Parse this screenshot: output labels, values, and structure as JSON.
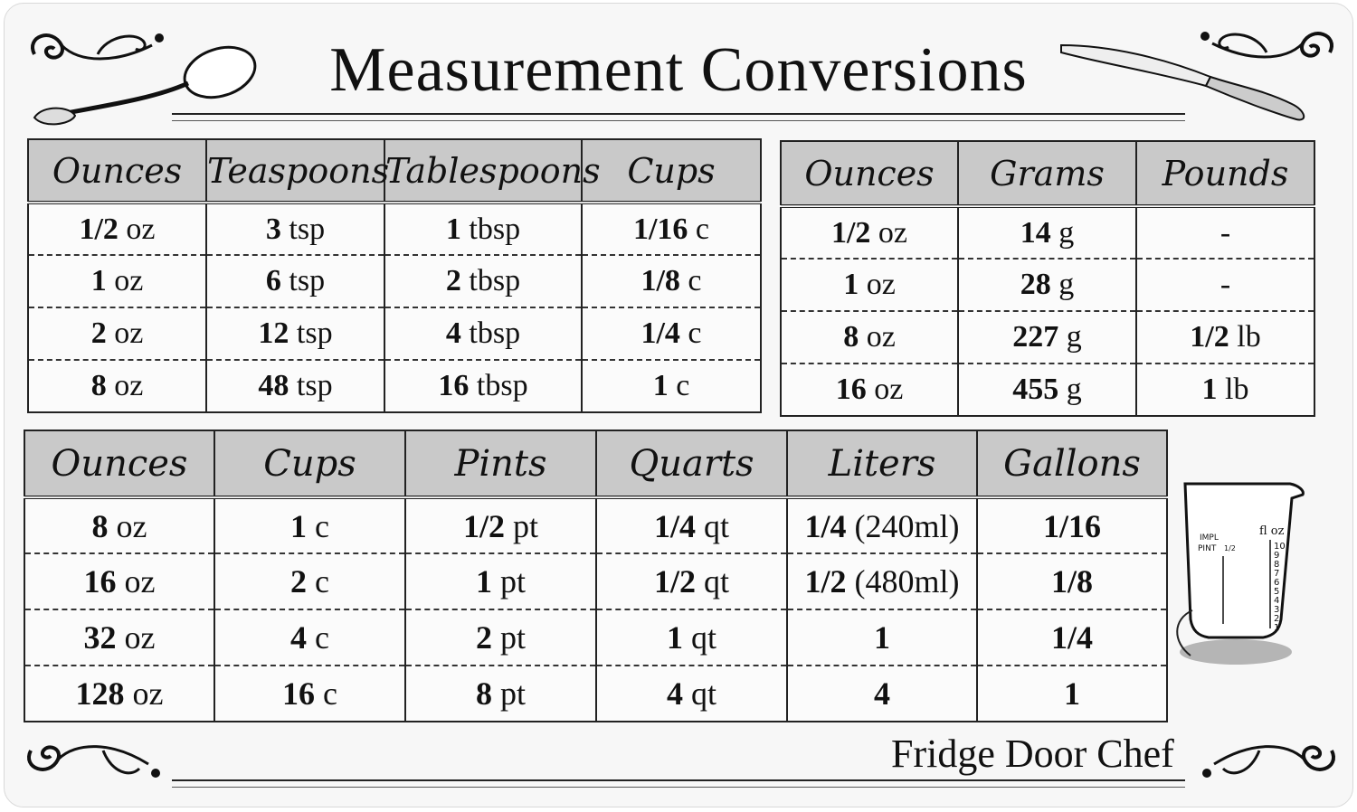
{
  "title": "Measurement Conversions",
  "brand": "Fridge Door Chef",
  "volume_table": {
    "headers": [
      "Ounces",
      "Teaspoons",
      "Tablespoons",
      "Cups"
    ],
    "rows": [
      [
        [
          "1/2",
          "oz"
        ],
        [
          "3",
          "tsp"
        ],
        [
          "1",
          "tbsp"
        ],
        [
          "1/16",
          "c"
        ]
      ],
      [
        [
          "1",
          "oz"
        ],
        [
          "6",
          "tsp"
        ],
        [
          "2",
          "tbsp"
        ],
        [
          "1/8",
          "c"
        ]
      ],
      [
        [
          "2",
          "oz"
        ],
        [
          "12",
          "tsp"
        ],
        [
          "4",
          "tbsp"
        ],
        [
          "1/4",
          "c"
        ]
      ],
      [
        [
          "8",
          "oz"
        ],
        [
          "48",
          "tsp"
        ],
        [
          "16",
          "tbsp"
        ],
        [
          "1",
          "c"
        ]
      ]
    ]
  },
  "weight_table": {
    "headers": [
      "Ounces",
      "Grams",
      "Pounds"
    ],
    "rows": [
      [
        [
          "1/2",
          "oz"
        ],
        [
          "14",
          "g"
        ],
        [
          "-",
          ""
        ]
      ],
      [
        [
          "1",
          "oz"
        ],
        [
          "28",
          "g"
        ],
        [
          "-",
          ""
        ]
      ],
      [
        [
          "8",
          "oz"
        ],
        [
          "227",
          "g"
        ],
        [
          "1/2",
          "lb"
        ]
      ],
      [
        [
          "16",
          "oz"
        ],
        [
          "455",
          "g"
        ],
        [
          "1",
          "lb"
        ]
      ]
    ]
  },
  "liquid_table": {
    "headers": [
      "Ounces",
      "Cups",
      "Pints",
      "Quarts",
      "Liters",
      "Gallons"
    ],
    "rows": [
      [
        [
          "8",
          "oz"
        ],
        [
          "1",
          "c"
        ],
        [
          "1/2",
          "pt"
        ],
        [
          "1/4",
          "qt"
        ],
        [
          "1/4",
          "(240ml)"
        ],
        [
          "1/16",
          ""
        ]
      ],
      [
        [
          "16",
          "oz"
        ],
        [
          "2",
          "c"
        ],
        [
          "1",
          "pt"
        ],
        [
          "1/2",
          "qt"
        ],
        [
          "1/2",
          "(480ml)"
        ],
        [
          "1/8",
          ""
        ]
      ],
      [
        [
          "32",
          "oz"
        ],
        [
          "4",
          "c"
        ],
        [
          "2",
          "pt"
        ],
        [
          "1",
          "qt"
        ],
        [
          "1",
          ""
        ],
        [
          "1/4",
          ""
        ]
      ],
      [
        [
          "128",
          "oz"
        ],
        [
          "16",
          "c"
        ],
        [
          "8",
          "pt"
        ],
        [
          "4",
          "qt"
        ],
        [
          "4",
          ""
        ],
        [
          "1",
          ""
        ]
      ]
    ]
  },
  "measuring_cup_labels": {
    "impl": "IMPL",
    "pint": "PINT",
    "half": "1/2",
    "floz": "fl oz",
    "scale": [
      "10",
      "9",
      "8",
      "7",
      "6",
      "5",
      "4",
      "3",
      "2",
      "1"
    ]
  },
  "icons": [
    "spoon-icon",
    "knife-icon",
    "measuring-cup-icon",
    "scroll-ornament-icon"
  ]
}
